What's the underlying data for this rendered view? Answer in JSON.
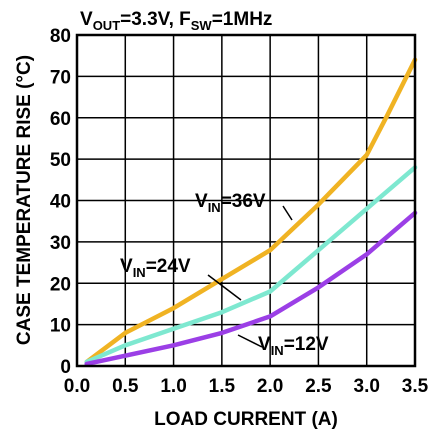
{
  "chart_data": {
    "type": "line",
    "title": "VOUT=3.3V, FSW=1MHz",
    "title_parts": {
      "v": "V",
      "out_sub": "OUT",
      "vout_value": "=3.3V, ",
      "f": "F",
      "sw_sub": "SW",
      "fsw_value": "=1MHz"
    },
    "xlabel": "LOAD CURRENT (A)",
    "ylabel": "CASE TEMPERATURE RISE (°C)",
    "xlim": [
      0,
      3.5
    ],
    "ylim": [
      0,
      80
    ],
    "x_ticks": [
      "0.0",
      "0.5",
      "1.0",
      "1.5",
      "2.0",
      "2.5",
      "3.0",
      "3.5"
    ],
    "y_ticks": [
      "0",
      "10",
      "20",
      "30",
      "40",
      "50",
      "60",
      "70",
      "80"
    ],
    "grid": true,
    "series": [
      {
        "name": "VIN=36V",
        "label_parts": {
          "v": "V",
          "sub": "IN",
          "value": "=36V"
        },
        "color": "#f0b323",
        "x": [
          0.1,
          0.5,
          1.0,
          1.5,
          2.0,
          2.5,
          3.0,
          3.2,
          3.5
        ],
        "y": [
          1.0,
          8.0,
          14.0,
          21.0,
          28.0,
          39.0,
          51.0,
          60.0,
          74.0
        ]
      },
      {
        "name": "VIN=24V",
        "label_parts": {
          "v": "V",
          "sub": "IN",
          "value": "=24V"
        },
        "color": "#7ee8d0",
        "x": [
          0.1,
          0.5,
          1.0,
          1.5,
          2.0,
          2.5,
          3.0,
          3.5
        ],
        "y": [
          1.0,
          5.0,
          9.0,
          13.0,
          18.0,
          28.0,
          38.0,
          48.0
        ]
      },
      {
        "name": "VIN=12V",
        "label_parts": {
          "v": "V",
          "sub": "IN",
          "value": "=12V"
        },
        "color": "#9b3fe6",
        "x": [
          0.1,
          0.5,
          1.0,
          1.5,
          2.0,
          2.5,
          3.0,
          3.5
        ],
        "y": [
          0.5,
          2.5,
          5.0,
          8.0,
          12.0,
          19.0,
          27.0,
          37.0
        ]
      }
    ]
  }
}
